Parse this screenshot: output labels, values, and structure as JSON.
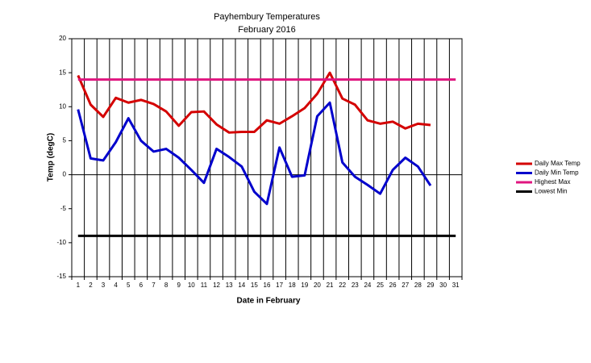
{
  "chart_data": {
    "type": "line",
    "title": "Payhembury Temperatures",
    "subtitle": "February 2016",
    "x_label": "Date in February",
    "y_label": "Temp (degC)",
    "categories": [
      "1",
      "2",
      "3",
      "4",
      "5",
      "6",
      "7",
      "8",
      "9",
      "10",
      "11",
      "12",
      "13",
      "14",
      "15",
      "16",
      "17",
      "18",
      "19",
      "20",
      "21",
      "22",
      "23",
      "24",
      "25",
      "26",
      "27",
      "28",
      "29",
      "30",
      "31"
    ],
    "series": [
      {
        "name": "Daily Max Temp",
        "color": "#d40000",
        "values": [
          14.6,
          10.3,
          8.5,
          11.3,
          10.6,
          11.0,
          10.4,
          9.3,
          7.2,
          9.2,
          9.3,
          7.4,
          6.2,
          6.3,
          6.3,
          8.0,
          7.5,
          8.6,
          9.8,
          11.9,
          15.0,
          11.2,
          10.3,
          8.0,
          7.5,
          7.8,
          6.8,
          7.5,
          7.3,
          null,
          null
        ]
      },
      {
        "name": "Daily Min Temp",
        "color": "#0000cc",
        "values": [
          9.6,
          2.4,
          2.1,
          4.8,
          8.3,
          5.0,
          3.4,
          3.8,
          2.5,
          0.7,
          -1.2,
          3.8,
          2.6,
          1.2,
          -2.5,
          -4.3,
          4.0,
          -0.3,
          -0.1,
          8.6,
          10.6,
          1.8,
          -0.3,
          -1.5,
          -2.8,
          0.7,
          2.5,
          1.2,
          -1.6,
          null,
          null
        ]
      },
      {
        "name": "Highest Max",
        "color": "#e0157f",
        "values": [
          14,
          14,
          14,
          14,
          14,
          14,
          14,
          14,
          14,
          14,
          14,
          14,
          14,
          14,
          14,
          14,
          14,
          14,
          14,
          14,
          14,
          14,
          14,
          14,
          14,
          14,
          14,
          14,
          14,
          14,
          14
        ]
      },
      {
        "name": "Lowest Min",
        "color": "#000000",
        "values": [
          -9,
          -9,
          -9,
          -9,
          -9,
          -9,
          -9,
          -9,
          -9,
          -9,
          -9,
          -9,
          -9,
          -9,
          -9,
          -9,
          -9,
          -9,
          -9,
          -9,
          -9,
          -9,
          -9,
          -9,
          -9,
          -9,
          -9,
          -9,
          -9,
          -9,
          -9
        ]
      }
    ],
    "ylim": [
      -15,
      20
    ],
    "yticks": [
      -15,
      -10,
      -5,
      0,
      5,
      10,
      15,
      20
    ],
    "legend": "right"
  }
}
